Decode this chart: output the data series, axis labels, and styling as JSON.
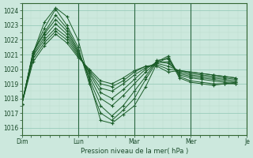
{
  "bg_color": "#cce8dd",
  "grid_color_major": "#99ccbb",
  "grid_color_minor": "#bbddcc",
  "line_color": "#1a5c28",
  "ylabel_values": [
    1016,
    1017,
    1018,
    1019,
    1020,
    1021,
    1022,
    1023,
    1024
  ],
  "ylim": [
    1015.5,
    1024.5
  ],
  "xlabel": "Pression niveau de la mer( hPa )",
  "day_labels": [
    "Dim",
    "Lun",
    "Mar",
    "Mer",
    "Je"
  ],
  "day_positions": [
    0,
    1,
    2,
    3,
    4
  ],
  "series": [
    [
      1017.6,
      1021.1,
      1023.2,
      1024.2,
      1023.6,
      1022.0,
      1019.2,
      1016.5,
      1016.3,
      1016.9,
      1017.5,
      1018.8,
      1020.4,
      1020.8,
      1019.4,
      1019.1,
      1019.0,
      1018.9,
      1019.0,
      1019.1
    ],
    [
      1017.6,
      1021.1,
      1022.8,
      1024.1,
      1023.0,
      1021.5,
      1019.0,
      1017.0,
      1016.5,
      1017.2,
      1018.0,
      1019.3,
      1020.5,
      1020.9,
      1019.5,
      1019.2,
      1019.1,
      1019.0,
      1019.0,
      1019.0
    ],
    [
      1017.6,
      1021.1,
      1022.5,
      1023.7,
      1022.8,
      1021.3,
      1019.3,
      1017.5,
      1016.8,
      1017.5,
      1018.5,
      1019.5,
      1020.6,
      1020.7,
      1019.6,
      1019.4,
      1019.3,
      1019.2,
      1019.1,
      1019.0
    ],
    [
      1017.6,
      1021.2,
      1022.4,
      1023.4,
      1022.6,
      1021.2,
      1019.5,
      1018.0,
      1017.5,
      1018.2,
      1019.0,
      1019.8,
      1020.5,
      1020.5,
      1019.7,
      1019.5,
      1019.4,
      1019.3,
      1019.2,
      1019.1
    ],
    [
      1017.6,
      1021.0,
      1022.2,
      1023.1,
      1022.4,
      1021.1,
      1019.7,
      1018.4,
      1018.0,
      1018.6,
      1019.3,
      1020.0,
      1020.5,
      1020.4,
      1019.8,
      1019.6,
      1019.5,
      1019.4,
      1019.3,
      1019.2
    ],
    [
      1017.6,
      1020.9,
      1022.0,
      1022.8,
      1022.2,
      1021.0,
      1019.8,
      1018.7,
      1018.5,
      1019.0,
      1019.6,
      1020.1,
      1020.4,
      1020.2,
      1019.9,
      1019.7,
      1019.6,
      1019.5,
      1019.4,
      1019.3
    ],
    [
      1017.6,
      1020.7,
      1021.8,
      1022.6,
      1022.0,
      1020.9,
      1019.9,
      1019.0,
      1018.8,
      1019.2,
      1019.8,
      1020.2,
      1020.3,
      1020.0,
      1019.9,
      1019.8,
      1019.7,
      1019.6,
      1019.5,
      1019.4
    ],
    [
      1017.6,
      1020.5,
      1021.6,
      1022.4,
      1021.8,
      1020.8,
      1020.0,
      1019.2,
      1019.0,
      1019.4,
      1019.9,
      1020.2,
      1020.2,
      1019.8,
      1019.9,
      1019.8,
      1019.7,
      1019.6,
      1019.5,
      1019.4
    ]
  ],
  "num_points_per_series": 20,
  "x_step": 0.2
}
